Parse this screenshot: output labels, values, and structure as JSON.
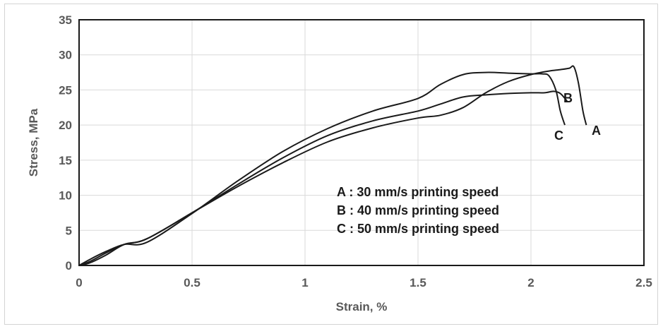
{
  "chart_data": {
    "type": "line",
    "title": "",
    "xlabel": "Strain, %",
    "ylabel": "Stress, MPa",
    "xlim": [
      0,
      2.5
    ],
    "ylim": [
      0,
      35
    ],
    "xticks": [
      0,
      0.5,
      1,
      1.5,
      2,
      2.5
    ],
    "xtick_labels": [
      "0",
      "0.5",
      "1",
      "1.5",
      "2",
      "2.5"
    ],
    "yticks": [
      0,
      5,
      10,
      15,
      20,
      25,
      30,
      35
    ],
    "ytick_labels": [
      "0",
      "5",
      "10",
      "15",
      "20",
      "25",
      "30",
      "35"
    ],
    "grid": true,
    "legend_position": "inside-bottom-right",
    "legend_entries": [
      "A : 30 mm/s  printing speed",
      "B : 40 mm/s  printing speed",
      "C : 50 mm/s  printing speed"
    ],
    "series": [
      {
        "name": "A",
        "color": "#1a1a1a",
        "x": [
          0,
          0.05,
          0.12,
          0.2,
          0.3,
          0.5,
          0.7,
          0.9,
          1.1,
          1.3,
          1.5,
          1.6,
          1.7,
          1.8,
          1.9,
          2.0,
          2.08,
          2.13,
          2.17,
          2.19,
          2.21,
          2.23,
          2.245
        ],
        "y": [
          0,
          0.4,
          1.5,
          3.0,
          3.8,
          7.5,
          11.2,
          14.6,
          17.6,
          19.6,
          21.0,
          21.4,
          22.5,
          24.6,
          26.2,
          27.2,
          27.7,
          27.9,
          28.1,
          28.3,
          26.0,
          22.0,
          20.0
        ]
      },
      {
        "name": "B",
        "color": "#1a1a1a",
        "x": [
          0,
          0.05,
          0.12,
          0.2,
          0.3,
          0.5,
          0.7,
          0.9,
          1.1,
          1.3,
          1.5,
          1.6,
          1.7,
          1.8,
          1.9,
          2.0,
          2.06,
          2.1,
          2.13,
          2.16
        ],
        "y": [
          0,
          0.6,
          1.8,
          3.0,
          3.8,
          7.5,
          11.5,
          15.3,
          18.5,
          20.6,
          22.0,
          23.0,
          24.0,
          24.3,
          24.5,
          24.6,
          24.6,
          24.8,
          24.5,
          23.4
        ]
      },
      {
        "name": "C",
        "color": "#1a1a1a",
        "x": [
          0,
          0.05,
          0.12,
          0.2,
          0.3,
          0.5,
          0.7,
          0.9,
          1.1,
          1.3,
          1.5,
          1.6,
          1.7,
          1.8,
          1.9,
          2.0,
          2.05,
          2.08,
          2.11,
          2.13,
          2.15
        ],
        "y": [
          0,
          0.9,
          2.0,
          3.0,
          3.3,
          7.4,
          12.0,
          16.2,
          19.5,
          22.0,
          23.8,
          25.8,
          27.2,
          27.5,
          27.4,
          27.3,
          27.3,
          27.0,
          25.0,
          22.0,
          20.0
        ]
      }
    ]
  }
}
